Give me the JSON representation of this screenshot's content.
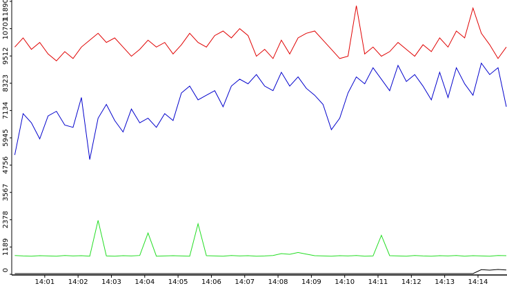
{
  "chart_data": {
    "type": "line",
    "x": [
      0.1,
      0.35,
      0.6,
      0.85,
      1.1,
      1.35,
      1.6,
      1.85,
      2.1,
      2.35,
      2.6,
      2.85,
      3.1,
      3.35,
      3.6,
      3.85,
      4.1,
      4.35,
      4.6,
      4.85,
      5.1,
      5.35,
      5.6,
      5.85,
      6.1,
      6.35,
      6.6,
      6.85,
      7.1,
      7.35,
      7.6,
      7.85,
      8.1,
      8.35,
      8.6,
      8.85,
      9.1,
      9.35,
      9.6,
      9.85,
      10.1,
      10.35,
      10.6,
      10.85,
      11.1,
      11.35,
      11.6,
      11.85,
      12.1,
      12.35,
      12.6,
      12.85,
      13.1,
      13.35,
      13.6,
      13.85,
      14.1,
      14.35,
      14.6,
      14.85
    ],
    "series": [
      {
        "color": "#e00000",
        "values": [
          9900,
          10300,
          9800,
          10100,
          9600,
          9300,
          9700,
          9400,
          9900,
          10200,
          10500,
          10100,
          10300,
          9900,
          9500,
          9800,
          10200,
          9900,
          10100,
          9600,
          10000,
          10500,
          10100,
          9900,
          10400,
          10600,
          10300,
          10700,
          10400,
          9500,
          9800,
          9400,
          10200,
          9600,
          10300,
          10500,
          10600,
          10200,
          9800,
          9400,
          9500,
          11700,
          9600,
          9900,
          9500,
          9700,
          10100,
          9800,
          9500,
          10000,
          9700,
          10300,
          9900,
          10600,
          10300,
          11600,
          10500,
          10000,
          9400,
          9900
        ]
      },
      {
        "color": "#0000cc",
        "values": [
          5200,
          7000,
          6600,
          5900,
          6900,
          7100,
          6500,
          6400,
          7700,
          5000,
          6800,
          7400,
          6700,
          6200,
          7200,
          6600,
          6800,
          6400,
          7000,
          6700,
          7900,
          8200,
          7600,
          7800,
          8000,
          7300,
          8200,
          8500,
          8300,
          8700,
          8200,
          8000,
          8800,
          8200,
          8600,
          8100,
          7800,
          7400,
          6300,
          6800,
          7900,
          8600,
          8300,
          9000,
          8500,
          8000,
          9100,
          8400,
          8700,
          8200,
          7600,
          8800,
          7700,
          9000,
          8300,
          7800,
          9200,
          8700,
          9000,
          7300
        ]
      },
      {
        "color": "#22dd22",
        "values": [
          820,
          800,
          790,
          810,
          800,
          790,
          820,
          800,
          810,
          790,
          2350,
          800,
          790,
          810,
          800,
          820,
          1800,
          790,
          800,
          810,
          800,
          790,
          2200,
          810,
          800,
          790,
          820,
          800,
          810,
          790,
          800,
          820,
          900,
          870,
          950,
          880,
          810,
          800,
          790,
          810,
          800,
          820,
          790,
          800,
          1700,
          810,
          800,
          790,
          820,
          800,
          790,
          810,
          800,
          820,
          790,
          810,
          800,
          790,
          820,
          810
        ]
      },
      {
        "color": "#000000",
        "values": [
          30,
          30,
          30,
          30,
          30,
          30,
          30,
          30,
          30,
          30,
          30,
          30,
          30,
          30,
          30,
          30,
          30,
          30,
          30,
          30,
          30,
          30,
          30,
          30,
          30,
          30,
          30,
          30,
          30,
          30,
          30,
          30,
          30,
          30,
          30,
          30,
          30,
          30,
          30,
          30,
          30,
          30,
          30,
          30,
          30,
          30,
          30,
          30,
          30,
          30,
          30,
          30,
          30,
          30,
          30,
          30,
          200,
          180,
          210,
          190
        ]
      }
    ],
    "xlim": [
      0.03,
      14.87
    ],
    "xticks": [
      {
        "value": 1,
        "label": "14:01"
      },
      {
        "value": 2,
        "label": "14:02"
      },
      {
        "value": 3,
        "label": "14:03"
      },
      {
        "value": 4,
        "label": "14:04"
      },
      {
        "value": 5,
        "label": "14:05"
      },
      {
        "value": 6,
        "label": "14:06"
      },
      {
        "value": 7,
        "label": "14:07"
      },
      {
        "value": 8,
        "label": "14:08"
      },
      {
        "value": 9,
        "label": "14:09"
      },
      {
        "value": 10,
        "label": "14:10"
      },
      {
        "value": 11,
        "label": "14:11"
      },
      {
        "value": 12,
        "label": "14:12"
      },
      {
        "value": 13,
        "label": "14:13"
      },
      {
        "value": 14,
        "label": "14:14"
      }
    ],
    "ylim": [
      0,
      11890
    ],
    "yticks": [
      0,
      1189,
      2378,
      3567,
      4756,
      5945,
      7134,
      8323,
      9512,
      10701,
      11890
    ]
  }
}
